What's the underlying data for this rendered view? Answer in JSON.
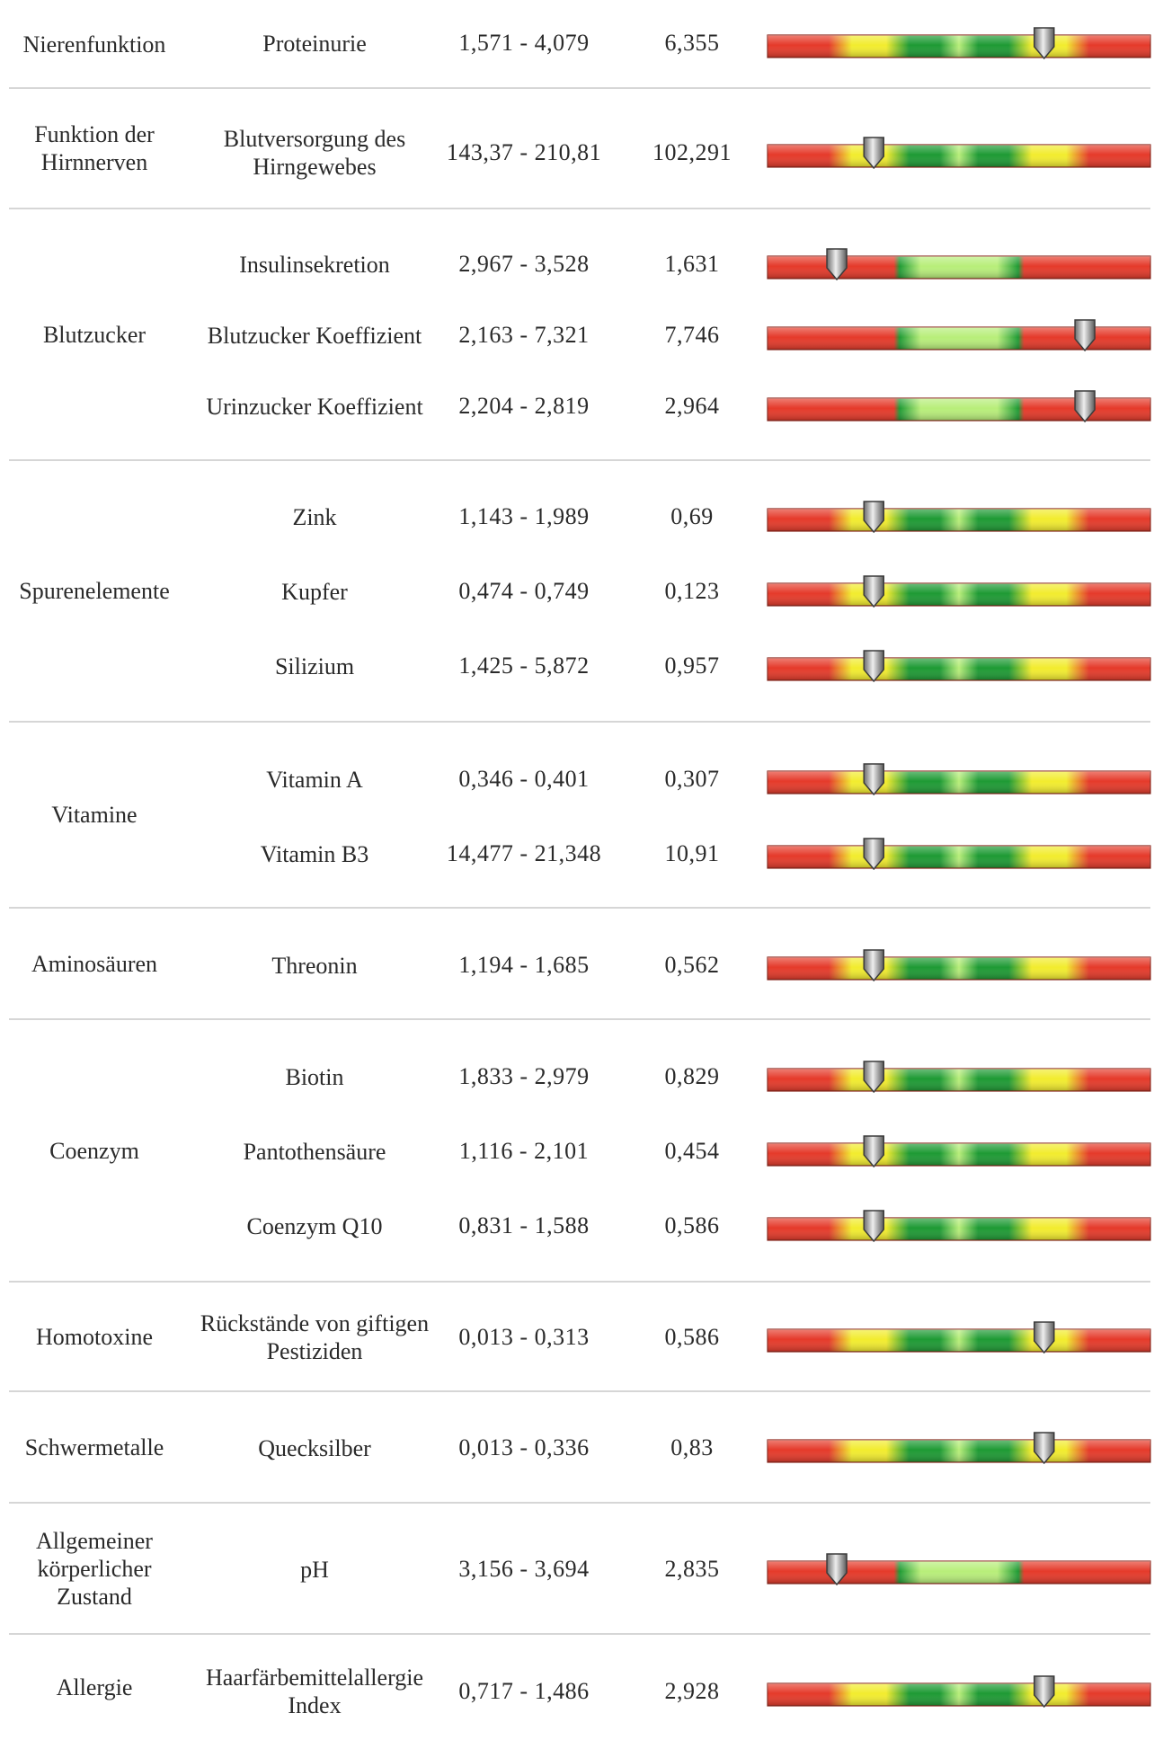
{
  "colors": {
    "red": "#e53a2a",
    "yellow": "#f2ec2e",
    "green": "#1e9a34",
    "lightgreen": "#b8ee7a",
    "separator": "#d6d6d6"
  },
  "gauge_styles": {
    "five_zone": "red-yellow-green-lightgreen-green-yellow-red",
    "three_zone": "red-lightgreen-red"
  },
  "groups": [
    {
      "category": "Nierenfunktion",
      "rows": [
        {
          "parameter": "Proteinurie",
          "range": "1,571 - 4,079",
          "value": "6,355",
          "gauge": "five_zone",
          "level": 0.73
        }
      ]
    },
    {
      "category": "Funktion der Hirnnerven",
      "rows": [
        {
          "parameter": "Blutversorgung des Hirngewebes",
          "range": "143,37 - 210,81",
          "value": "102,291",
          "gauge": "five_zone",
          "level": 0.27
        }
      ]
    },
    {
      "category": "Blutzucker",
      "rows": [
        {
          "parameter": "Insulinsekretion",
          "range": "2,967 - 3,528",
          "value": "1,631",
          "gauge": "three_zone",
          "level": 0.17
        },
        {
          "parameter": "Blutzucker Koeffizient",
          "range": "2,163 - 7,321",
          "value": "7,746",
          "gauge": "three_zone",
          "level": 0.84
        },
        {
          "parameter": "Urinzucker Koeffizient",
          "range": "2,204 - 2,819",
          "value": "2,964",
          "gauge": "three_zone",
          "level": 0.84
        }
      ]
    },
    {
      "category": "Spurenelemente",
      "rows": [
        {
          "parameter": "Zink",
          "range": "1,143 - 1,989",
          "value": "0,69",
          "gauge": "five_zone",
          "level": 0.27
        },
        {
          "parameter": "Kupfer",
          "range": "0,474 - 0,749",
          "value": "0,123",
          "gauge": "five_zone",
          "level": 0.27
        },
        {
          "parameter": "Silizium",
          "range": "1,425 - 5,872",
          "value": "0,957",
          "gauge": "five_zone",
          "level": 0.27
        }
      ]
    },
    {
      "category": "Vitamine",
      "rows": [
        {
          "parameter": "Vitamin A",
          "range": "0,346 - 0,401",
          "value": "0,307",
          "gauge": "five_zone",
          "level": 0.27
        },
        {
          "parameter": "Vitamin B3",
          "range": "14,477 - 21,348",
          "value": "10,91",
          "gauge": "five_zone",
          "level": 0.27
        }
      ]
    },
    {
      "category": "Aminosäuren",
      "rows": [
        {
          "parameter": "Threonin",
          "range": "1,194 - 1,685",
          "value": "0,562",
          "gauge": "five_zone",
          "level": 0.27
        }
      ]
    },
    {
      "category": "Coenzym",
      "rows": [
        {
          "parameter": "Biotin",
          "range": "1,833 - 2,979",
          "value": "0,829",
          "gauge": "five_zone",
          "level": 0.27
        },
        {
          "parameter": "Pantothensäure",
          "range": "1,116 - 2,101",
          "value": "0,454",
          "gauge": "five_zone",
          "level": 0.27
        },
        {
          "parameter": "Coenzym Q10",
          "range": "0,831 - 1,588",
          "value": "0,586",
          "gauge": "five_zone",
          "level": 0.27
        }
      ]
    },
    {
      "category": "Homotoxine",
      "rows": [
        {
          "parameter": "Rückstände von giftigen Pestiziden",
          "range": "0,013 - 0,313",
          "value": "0,586",
          "gauge": "five_zone",
          "level": 0.73
        }
      ]
    },
    {
      "category": "Schwermetalle",
      "rows": [
        {
          "parameter": "Quecksilber",
          "range": "0,013 - 0,336",
          "value": "0,83",
          "gauge": "five_zone",
          "level": 0.73
        }
      ]
    },
    {
      "category": "Allgemeiner körperlicher Zustand",
      "rows": [
        {
          "parameter": "pH",
          "range": "3,156 - 3,694",
          "value": "2,835",
          "gauge": "three_zone",
          "level": 0.17
        }
      ]
    },
    {
      "category": "Allergie",
      "rows": [
        {
          "parameter": "Haarfärbemittelallergie Index",
          "range": "0,717 - 1,486",
          "value": "2,928",
          "gauge": "five_zone",
          "level": 0.73
        }
      ]
    }
  ]
}
